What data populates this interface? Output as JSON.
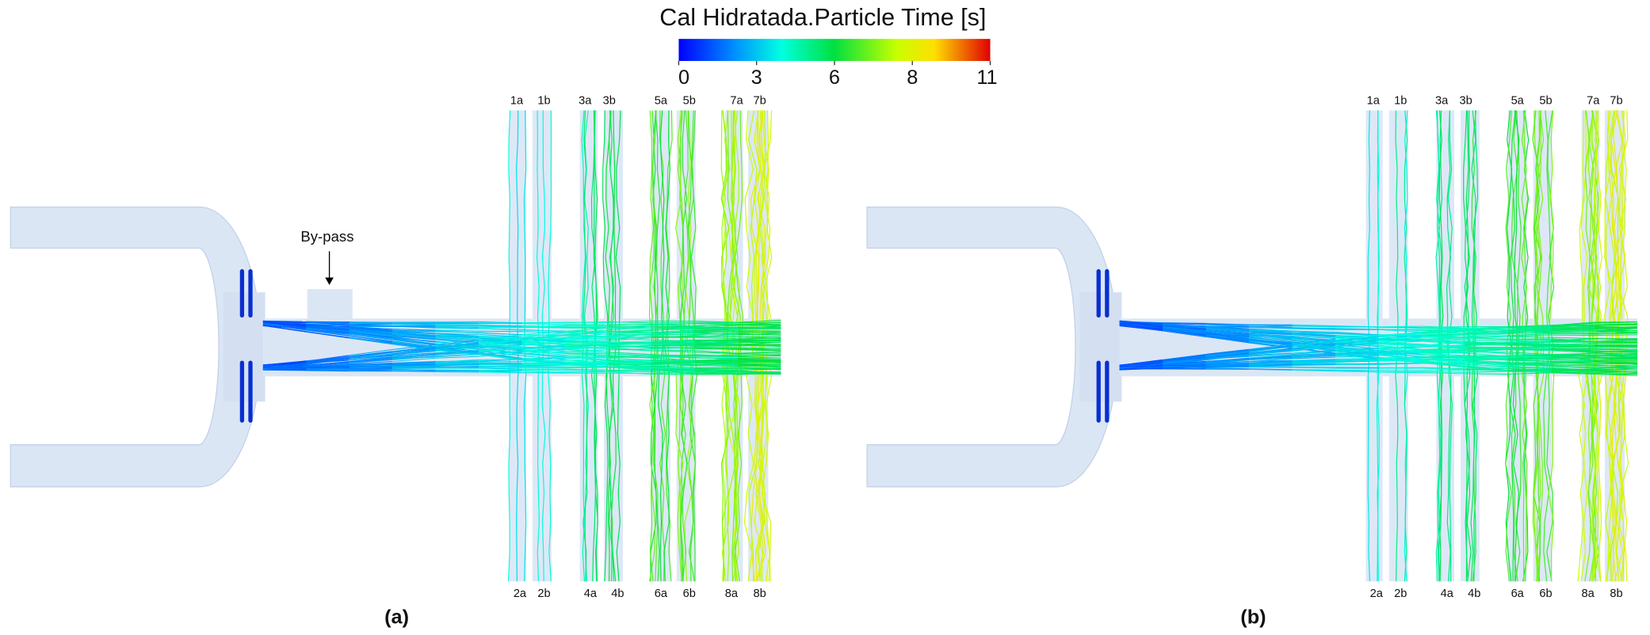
{
  "colorbar": {
    "title": "Cal Hidratada.Particle Time [s]",
    "range": [
      0,
      11
    ],
    "ticks": [
      0,
      {
        "value": 2.75,
        "label": "3"
      },
      {
        "value": 5.5,
        "label": "6"
      },
      {
        "value": 8.25,
        "label": "8"
      },
      11
    ]
  },
  "panels": [
    {
      "label": "(a)",
      "annotation": "By-pass",
      "top_labels": [
        "1a",
        "1b",
        "3a",
        "3b",
        "5a",
        "5b",
        "7a",
        "7b"
      ],
      "bottom_labels": [
        "2a",
        "2b",
        "4a",
        "4b",
        "6a",
        "6b",
        "8a",
        "8b"
      ]
    },
    {
      "label": "(b)",
      "top_labels": [
        "1a",
        "1b",
        "3a",
        "3b",
        "5a",
        "5b",
        "7a",
        "7b"
      ],
      "bottom_labels": [
        "2a",
        "2b",
        "4a",
        "4b",
        "6a",
        "6b",
        "8a",
        "8b"
      ]
    }
  ]
}
